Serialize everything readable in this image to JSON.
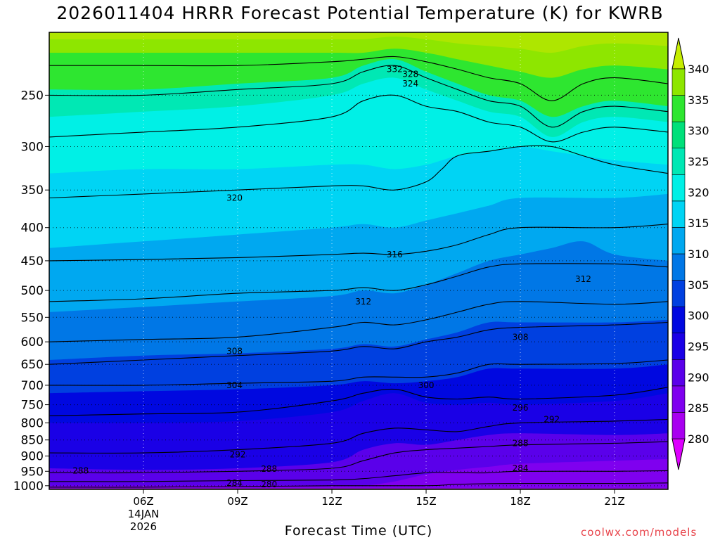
{
  "chart_data": {
    "type": "contour",
    "title": "2026011404 HRRR Forecast Potential Temperature (K) for KWRB",
    "xlabel": "Forecast Time (UTC)",
    "ylabel": "",
    "credit": "coolwx.com/models",
    "x_axis": {
      "range_hours_utc": [
        3.0,
        22.7
      ],
      "ticks": [
        {
          "hour": 6,
          "label": "06Z",
          "date_line1": "14JAN",
          "date_line2": "2026"
        },
        {
          "hour": 9,
          "label": "09Z"
        },
        {
          "hour": 12,
          "label": "12Z"
        },
        {
          "hour": 15,
          "label": "15Z"
        },
        {
          "hour": 18,
          "label": "18Z"
        },
        {
          "hour": 21,
          "label": "21Z"
        }
      ]
    },
    "y_axis": {
      "scale": "log-pressure",
      "range_hPa": [
        1013,
        200
      ],
      "ticks": [
        250,
        300,
        350,
        400,
        450,
        500,
        550,
        600,
        650,
        700,
        750,
        800,
        850,
        900,
        950,
        1000
      ]
    },
    "colorbar": {
      "labels": [
        280,
        285,
        290,
        295,
        300,
        305,
        310,
        315,
        320,
        325,
        330,
        335,
        340
      ],
      "colors": [
        "#dd00ff",
        "#a800f0",
        "#7f00ef",
        "#5a00ea",
        "#1a00e6",
        "#0008e0",
        "#0040e0",
        "#0077e6",
        "#00a8f0",
        "#00d4f4",
        "#00f0e6",
        "#00e8b4",
        "#00e07a",
        "#2ee630",
        "#8ee600",
        "#c6ee00"
      ]
    },
    "fill_layers": [
      {
        "theta": 280,
        "color": "#7f00ef",
        "x": [
          3,
          6,
          9,
          12,
          15,
          18,
          21,
          22.7
        ],
        "p": [
          1013,
          1013,
          1013,
          1013,
          1013,
          1013,
          1013,
          1013
        ]
      },
      {
        "theta": 285,
        "color": "#7f00ef",
        "x": [
          3,
          6,
          9,
          12,
          13,
          14,
          15,
          16,
          17,
          18,
          21,
          22.7
        ],
        "p": [
          1000,
          1000,
          1000,
          1000,
          1000,
          985,
          960,
          945,
          935,
          925,
          915,
          910
        ]
      },
      {
        "theta": 290,
        "color": "#5a00ea",
        "x": [
          3,
          6,
          9,
          12,
          13,
          14,
          15,
          16,
          17,
          18,
          21,
          22.7
        ],
        "p": [
          940,
          945,
          940,
          920,
          880,
          860,
          865,
          850,
          835,
          830,
          835,
          830
        ]
      },
      {
        "theta": 295,
        "color": "#1a00e6",
        "x": [
          3,
          6,
          9,
          12,
          13,
          14,
          15,
          16,
          17,
          18,
          21,
          22.7
        ],
        "p": [
          800,
          800,
          795,
          770,
          740,
          720,
          745,
          750,
          745,
          750,
          740,
          720
        ]
      },
      {
        "theta": 300,
        "color": "#0008e0",
        "x": [
          3,
          6,
          9,
          12,
          13,
          14,
          15,
          16,
          17,
          18,
          21,
          22.7
        ],
        "p": [
          720,
          715,
          710,
          700,
          690,
          695,
          690,
          680,
          660,
          660,
          660,
          650
        ]
      },
      {
        "theta": 305,
        "color": "#0040e0",
        "x": [
          3,
          6,
          9,
          12,
          13,
          14,
          15,
          16,
          17,
          18,
          21,
          22.7
        ],
        "p": [
          640,
          630,
          625,
          615,
          605,
          610,
          595,
          580,
          560,
          560,
          560,
          555
        ]
      },
      {
        "theta": 310,
        "color": "#0077e6",
        "x": [
          3,
          6,
          9,
          12,
          13,
          14,
          15,
          16,
          17,
          18,
          19,
          20,
          21,
          22.7
        ],
        "p": [
          540,
          530,
          520,
          510,
          500,
          505,
          490,
          470,
          450,
          440,
          430,
          420,
          440,
          450
        ]
      },
      {
        "theta": 315,
        "color": "#00a8f0",
        "x": [
          3,
          6,
          9,
          12,
          13,
          14,
          15,
          16,
          17,
          18,
          21,
          22.7
        ],
        "p": [
          430,
          420,
          410,
          400,
          395,
          400,
          390,
          380,
          370,
          360,
          360,
          355
        ]
      },
      {
        "theta": 320,
        "color": "#00d4f4",
        "x": [
          3,
          6,
          9,
          12,
          13,
          14,
          15,
          15.5,
          16,
          17,
          18,
          19,
          20,
          21,
          22.7
        ],
        "p": [
          330,
          325,
          325,
          320,
          320,
          325,
          320,
          315,
          310,
          305,
          300,
          305,
          310,
          315,
          320
        ]
      },
      {
        "theta": 325,
        "color": "#00f0e6",
        "x": [
          3,
          6,
          9,
          12,
          13,
          14,
          15,
          16,
          17,
          18,
          19,
          20,
          21,
          22.7
        ],
        "p": [
          270,
          265,
          260,
          250,
          240,
          235,
          245,
          255,
          265,
          270,
          290,
          275,
          270,
          275
        ]
      },
      {
        "theta": 330,
        "color": "#00e8b4",
        "x": [
          3,
          6,
          9,
          12,
          13,
          14,
          15,
          16,
          17,
          18,
          19,
          20,
          21,
          22.7
        ],
        "p": [
          245,
          245,
          240,
          235,
          225,
          220,
          230,
          240,
          250,
          255,
          270,
          260,
          255,
          260
        ]
      },
      {
        "theta": 335,
        "color": "#2ee630",
        "x": [
          3,
          6,
          9,
          12,
          13,
          14,
          15,
          16,
          17,
          18,
          19,
          20,
          21,
          22.7
        ],
        "p": [
          215,
          215,
          215,
          215,
          215,
          212,
          215,
          220,
          225,
          230,
          235,
          228,
          225,
          228
        ]
      },
      {
        "theta": 340,
        "color": "#8ee600",
        "x": [
          3,
          6,
          9,
          12,
          13,
          14,
          15,
          16,
          17,
          18,
          19,
          20,
          21,
          22.7
        ],
        "p": [
          205,
          205,
          205,
          205,
          205,
          203,
          205,
          208,
          210,
          212,
          215,
          210,
          208,
          210
        ]
      }
    ],
    "contours": [
      {
        "theta": 280,
        "x": [
          3,
          6,
          9,
          12,
          15,
          16,
          18,
          21,
          22.7
        ],
        "p": [
          1005,
          1005,
          1003,
          1000,
          1000,
          995,
          992,
          992,
          990
        ]
      },
      {
        "theta": 284,
        "x": [
          3,
          6,
          9,
          12,
          13,
          14,
          15,
          16,
          17,
          18,
          21,
          22.7
        ],
        "p": [
          985,
          985,
          982,
          980,
          975,
          965,
          955,
          955,
          955,
          950,
          950,
          948
        ]
      },
      {
        "theta": 288,
        "x": [
          3,
          6,
          9,
          12,
          13,
          14,
          15,
          16,
          17,
          18,
          21,
          22.7
        ],
        "p": [
          955,
          955,
          950,
          940,
          915,
          890,
          880,
          875,
          870,
          865,
          860,
          855
        ]
      },
      {
        "theta": 292,
        "x": [
          3,
          6,
          9,
          12,
          13,
          14,
          15,
          16,
          17,
          18,
          21,
          22.7
        ],
        "p": [
          890,
          890,
          880,
          860,
          830,
          815,
          820,
          825,
          810,
          800,
          795,
          790
        ]
      },
      {
        "theta": 296,
        "x": [
          3,
          6,
          9,
          12,
          13,
          14,
          15,
          16,
          17,
          18,
          21,
          22.7
        ],
        "p": [
          780,
          775,
          770,
          740,
          720,
          710,
          730,
          735,
          730,
          735,
          725,
          705
        ]
      },
      {
        "theta": 300,
        "x": [
          3,
          6,
          9,
          12,
          13,
          14,
          15,
          16,
          17,
          18,
          21,
          22.7
        ],
        "p": [
          700,
          700,
          695,
          690,
          680,
          680,
          680,
          670,
          650,
          650,
          648,
          640
        ]
      },
      {
        "theta": 304,
        "x": [
          3,
          6,
          9,
          12,
          13,
          14,
          15,
          16,
          17,
          18,
          21,
          22.7
        ],
        "p": [
          650,
          640,
          630,
          620,
          610,
          615,
          600,
          590,
          575,
          570,
          565,
          560
        ]
      },
      {
        "theta": 308,
        "x": [
          3,
          6,
          9,
          12,
          13,
          14,
          15,
          16,
          17,
          18,
          21,
          22.7
        ],
        "p": [
          600,
          595,
          590,
          570,
          560,
          565,
          555,
          540,
          525,
          520,
          525,
          520
        ]
      },
      {
        "theta": 312,
        "x": [
          3,
          6,
          9,
          12,
          13,
          14,
          15,
          16,
          17,
          18,
          21,
          22.7
        ],
        "p": [
          520,
          515,
          505,
          500,
          495,
          500,
          490,
          475,
          460,
          455,
          455,
          460
        ]
      },
      {
        "theta": 316,
        "x": [
          3,
          6,
          9,
          12,
          13,
          14,
          15,
          16,
          17,
          18,
          21,
          22.7
        ],
        "p": [
          450,
          448,
          445,
          440,
          438,
          440,
          435,
          425,
          410,
          400,
          400,
          395
        ]
      },
      {
        "theta": 320,
        "x": [
          3,
          6,
          9,
          12,
          13,
          14,
          15,
          15.5,
          16,
          17,
          18,
          19,
          20,
          21,
          22.7
        ],
        "p": [
          360,
          355,
          350,
          345,
          345,
          350,
          340,
          325,
          310,
          305,
          300,
          300,
          310,
          320,
          330
        ]
      },
      {
        "theta": 324,
        "x": [
          3,
          6,
          9,
          12,
          13,
          14,
          15,
          16,
          17,
          18,
          19,
          20,
          21,
          22.7
        ],
        "p": [
          290,
          285,
          280,
          270,
          255,
          250,
          260,
          265,
          275,
          280,
          295,
          285,
          280,
          285
        ]
      },
      {
        "theta": 328,
        "x": [
          3,
          6,
          9,
          12,
          13,
          14,
          15,
          16,
          17,
          18,
          19,
          20,
          21,
          22.7
        ],
        "p": [
          250,
          250,
          245,
          240,
          230,
          225,
          235,
          245,
          255,
          260,
          280,
          265,
          260,
          265
        ]
      },
      {
        "theta": 332,
        "x": [
          3,
          6,
          9,
          12,
          13,
          14,
          15,
          16,
          17,
          18,
          19,
          20,
          21,
          22.7
        ],
        "p": [
          225,
          225,
          225,
          222,
          220,
          218,
          222,
          228,
          235,
          240,
          255,
          240,
          235,
          240
        ]
      }
    ],
    "contour_labels": [
      {
        "text": "332",
        "x": 14.0,
        "p": 228
      },
      {
        "text": "328",
        "x": 14.5,
        "p": 232
      },
      {
        "text": "324",
        "x": 14.5,
        "p": 240
      },
      {
        "text": "320",
        "x": 8.9,
        "p": 360
      },
      {
        "text": "316",
        "x": 14.0,
        "p": 440
      },
      {
        "text": "312",
        "x": 13.0,
        "p": 520
      },
      {
        "text": "312",
        "x": 20.0,
        "p": 480
      },
      {
        "text": "308",
        "x": 8.9,
        "p": 620
      },
      {
        "text": "308",
        "x": 18.0,
        "p": 590
      },
      {
        "text": "304",
        "x": 8.9,
        "p": 700
      },
      {
        "text": "300",
        "x": 15.0,
        "p": 700
      },
      {
        "text": "296",
        "x": 18.0,
        "p": 758
      },
      {
        "text": "292",
        "x": 9.0,
        "p": 895
      },
      {
        "text": "292",
        "x": 19.0,
        "p": 790
      },
      {
        "text": "288",
        "x": 4.0,
        "p": 948
      },
      {
        "text": "288",
        "x": 10.0,
        "p": 942
      },
      {
        "text": "288",
        "x": 18.0,
        "p": 860
      },
      {
        "text": "284",
        "x": 8.9,
        "p": 990
      },
      {
        "text": "284",
        "x": 18.0,
        "p": 940
      },
      {
        "text": "280",
        "x": 10.0,
        "p": 995
      }
    ]
  }
}
